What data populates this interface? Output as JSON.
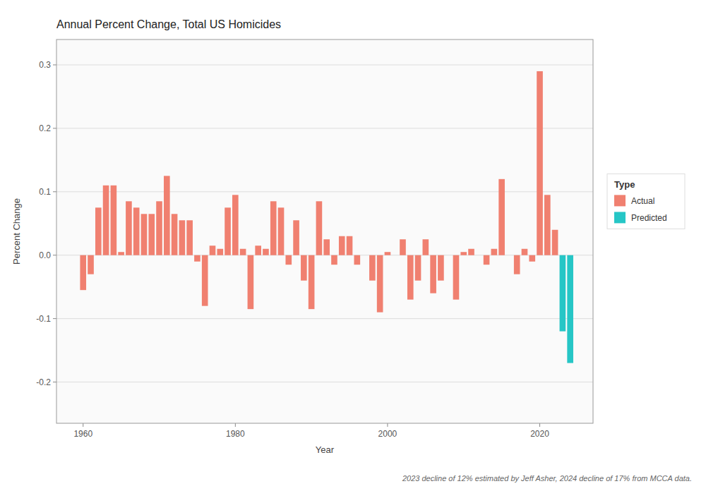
{
  "chart_data": {
    "type": "bar",
    "title": "Annual Percent Change, Total US Homicides",
    "x_label": "Year",
    "y_label": "Percent Change",
    "annotations": [
      "2023 decline of 12% estimated by Jeff Asher, 2024 decline of 17% from MCCA data."
    ],
    "legend_title": "Type",
    "legend": "right",
    "grid": true,
    "x": [
      1960,
      1961,
      1962,
      1963,
      1964,
      1965,
      1966,
      1967,
      1968,
      1969,
      1970,
      1971,
      1972,
      1973,
      1974,
      1975,
      1976,
      1977,
      1978,
      1979,
      1980,
      1981,
      1982,
      1983,
      1984,
      1985,
      1986,
      1987,
      1988,
      1989,
      1990,
      1991,
      1992,
      1993,
      1994,
      1995,
      1996,
      1997,
      1998,
      1999,
      2000,
      2001,
      2002,
      2003,
      2004,
      2005,
      2006,
      2007,
      2008,
      2009,
      2010,
      2011,
      2012,
      2013,
      2014,
      2015,
      2016,
      2017,
      2018,
      2019,
      2020,
      2021,
      2022,
      2023,
      2024
    ],
    "series": [
      {
        "name": "Actual",
        "color": "#F08070",
        "values": [
          -0.055,
          -0.03,
          0.075,
          0.11,
          0.11,
          0.005,
          0.085,
          0.075,
          0.065,
          0.065,
          0.085,
          0.125,
          0.065,
          0.055,
          0.055,
          -0.01,
          -0.08,
          0.015,
          0.01,
          0.075,
          0.095,
          0.01,
          -0.085,
          0.015,
          0.01,
          0.085,
          0.075,
          -0.015,
          0.055,
          -0.04,
          -0.085,
          0.085,
          0.025,
          -0.015,
          0.03,
          0.03,
          -0.015,
          0.0,
          -0.04,
          -0.09,
          0.005,
          0.0,
          0.025,
          -0.07,
          -0.04,
          0.025,
          -0.06,
          -0.04,
          0.0,
          -0.07,
          0.005,
          0.01,
          0.0,
          -0.015,
          0.01,
          0.12,
          0.0,
          -0.03,
          0.01,
          -0.01,
          0.29,
          0.095,
          0.04,
          null,
          null
        ]
      },
      {
        "name": "Predicted",
        "color": "#26C6C6",
        "values": [
          null,
          null,
          null,
          null,
          null,
          null,
          null,
          null,
          null,
          null,
          null,
          null,
          null,
          null,
          null,
          null,
          null,
          null,
          null,
          null,
          null,
          null,
          null,
          null,
          null,
          null,
          null,
          null,
          null,
          null,
          null,
          null,
          null,
          null,
          null,
          null,
          null,
          null,
          null,
          null,
          null,
          null,
          null,
          null,
          null,
          null,
          null,
          null,
          null,
          null,
          null,
          null,
          null,
          null,
          null,
          null,
          null,
          null,
          null,
          null,
          null,
          null,
          null,
          -0.12,
          -0.17
        ]
      }
    ],
    "xlim": [
      1956.5,
      2027
    ],
    "xticks": [
      1960,
      1980,
      2000,
      2020
    ],
    "ylim": [
      -0.265,
      0.34
    ],
    "yticks": [
      -0.2,
      -0.1,
      {
        "value": 0,
        "label": "0.0"
      },
      0.1,
      0.2,
      0.3
    ]
  }
}
